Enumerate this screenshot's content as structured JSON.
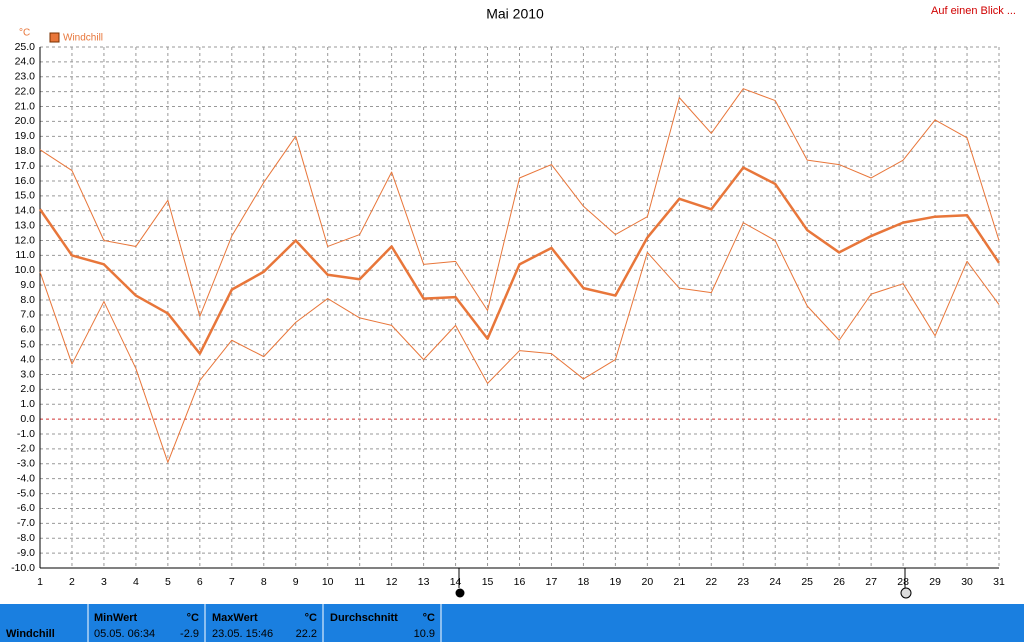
{
  "chart_data": {
    "type": "line",
    "title": "Mai 2010",
    "unit": "°C",
    "link": "Auf einen Blick ...",
    "x": [
      1,
      2,
      3,
      4,
      5,
      6,
      7,
      8,
      9,
      10,
      11,
      12,
      13,
      14,
      15,
      16,
      17,
      18,
      19,
      20,
      21,
      22,
      23,
      24,
      25,
      26,
      27,
      28,
      29,
      30,
      31
    ],
    "xlim": [
      1,
      31
    ],
    "xticks": [
      1,
      2,
      3,
      4,
      5,
      6,
      7,
      8,
      9,
      10,
      11,
      12,
      13,
      14,
      15,
      16,
      17,
      18,
      19,
      20,
      21,
      22,
      23,
      24,
      25,
      26,
      27,
      28,
      29,
      30,
      31
    ],
    "ylim": [
      -10,
      25
    ],
    "yticks": [
      {
        "value": 25,
        "label": "25.0"
      },
      {
        "value": 24,
        "label": "24.0"
      },
      {
        "value": 23,
        "label": "23.0"
      },
      {
        "value": 22,
        "label": "22.0"
      },
      {
        "value": 21,
        "label": "21.0"
      },
      {
        "value": 20,
        "label": "20.0"
      },
      {
        "value": 19,
        "label": "19.0"
      },
      {
        "value": 18,
        "label": "18.0"
      },
      {
        "value": 17,
        "label": "17.0"
      },
      {
        "value": 16,
        "label": "16.0"
      },
      {
        "value": 15,
        "label": "15.0"
      },
      {
        "value": 14,
        "label": "14.0"
      },
      {
        "value": 13,
        "label": "13.0"
      },
      {
        "value": 12,
        "label": "12.0"
      },
      {
        "value": 11,
        "label": "11.0"
      },
      {
        "value": 10,
        "label": "10.0"
      },
      {
        "value": 9,
        "label": "9.0"
      },
      {
        "value": 8,
        "label": "8.0"
      },
      {
        "value": 7,
        "label": "7.0"
      },
      {
        "value": 6,
        "label": "6.0"
      },
      {
        "value": 5,
        "label": "5.0"
      },
      {
        "value": 4,
        "label": "4.0"
      },
      {
        "value": 3,
        "label": "3.0"
      },
      {
        "value": 2,
        "label": "2.0"
      },
      {
        "value": 1,
        "label": "1.0"
      },
      {
        "value": 0,
        "label": "0.0"
      },
      {
        "value": -1,
        "label": "-1.0"
      },
      {
        "value": -2,
        "label": "-2.0"
      },
      {
        "value": -3,
        "label": "-3.0"
      },
      {
        "value": -4,
        "label": "-4.0"
      },
      {
        "value": -5,
        "label": "-5.0"
      },
      {
        "value": -6,
        "label": "-6.0"
      },
      {
        "value": -7,
        "label": "-7.0"
      },
      {
        "value": -8,
        "label": "-8.0"
      },
      {
        "value": -9,
        "label": "-9.0"
      },
      {
        "value": -10,
        "label": "-10.0"
      }
    ],
    "grid": true,
    "series": [
      {
        "name": "Windchill",
        "color": "#e8763a",
        "values": [
          14.1,
          11.0,
          10.4,
          8.3,
          7.1,
          4.4,
          8.7,
          9.9,
          12.0,
          9.7,
          9.4,
          11.6,
          8.1,
          8.2,
          5.4,
          10.4,
          11.5,
          8.8,
          8.3,
          12.2,
          14.8,
          14.1,
          16.9,
          15.8,
          12.7,
          11.2,
          12.3,
          13.2,
          13.6,
          13.7,
          10.5
        ],
        "max": [
          18.1,
          16.7,
          12.0,
          11.6,
          14.7,
          6.9,
          12.3,
          15.9,
          19.0,
          11.6,
          12.4,
          16.6,
          10.4,
          10.6,
          7.3,
          16.2,
          17.1,
          14.3,
          12.4,
          13.6,
          21.6,
          19.2,
          22.2,
          21.4,
          17.4,
          17.1,
          16.2,
          17.4,
          20.1,
          18.9,
          12.0
        ],
        "min": [
          9.9,
          3.7,
          7.9,
          3.4,
          -2.9,
          2.6,
          5.3,
          4.2,
          6.5,
          8.1,
          6.8,
          6.3,
          4.0,
          6.3,
          2.4,
          4.6,
          4.4,
          2.7,
          4.0,
          11.2,
          8.8,
          8.5,
          13.2,
          12.0,
          7.6,
          5.3,
          8.4,
          9.1,
          5.6,
          10.6,
          7.7
        ]
      }
    ]
  },
  "summary": {
    "name": "Windchill",
    "cells": [
      {
        "title": "MinWert",
        "unit": "°C",
        "time": "05.05. 06:34",
        "value": -2.9
      },
      {
        "title": "MaxWert",
        "unit": "°C",
        "time": "23.05. 15:46",
        "value": 22.2
      },
      {
        "title": "Durchschnitt",
        "unit": "°C",
        "value": 10.9
      }
    ]
  }
}
